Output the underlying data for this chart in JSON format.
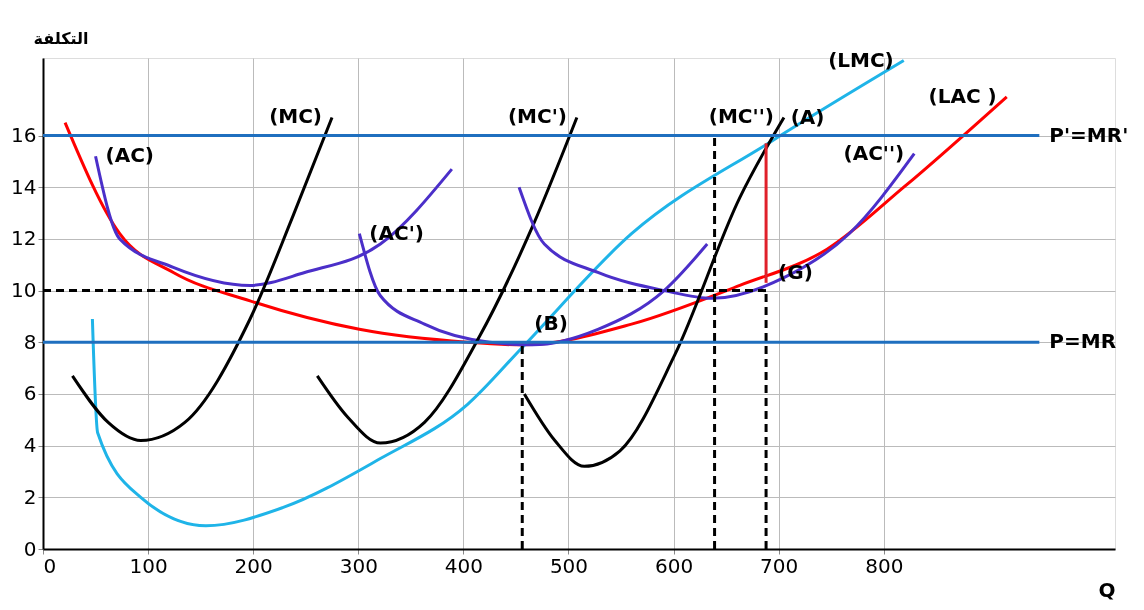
{
  "chart_data": {
    "type": "line",
    "xlabel": "Q",
    "ylabel": "التكلفة",
    "xlim": [
      0,
      1020
    ],
    "ylim": [
      0,
      19
    ],
    "xticks": [
      0,
      100,
      200,
      300,
      400,
      500,
      600,
      700,
      800
    ],
    "yticks": [
      0,
      2,
      4,
      6,
      8,
      10,
      12,
      14,
      16
    ],
    "grid": true,
    "marker": "none",
    "line_style": "solid",
    "series": [
      {
        "name": "(LAC )",
        "color": "#ff0000",
        "x": [
          21,
          73,
          124,
          197,
          301,
          404,
          456,
          560,
          663,
          746,
          819,
          917
        ],
        "values": [
          16.5,
          12.2,
          10.7,
          9.6,
          8.5,
          8.0,
          7.9,
          8.7,
          10.2,
          11.6,
          14.0,
          17.5
        ]
      },
      {
        "name": "(LMC)",
        "color": "#1fb4e8",
        "x": [
          47,
          52,
          93,
          155,
          228,
          321,
          404,
          456,
          560,
          694,
          819
        ],
        "values": [
          8.9,
          4.5,
          2.0,
          0.9,
          1.6,
          3.5,
          5.6,
          7.8,
          12.2,
          15.8,
          18.9
        ]
      },
      {
        "name": "(AC)",
        "color": "#4b2fc9",
        "x": [
          50,
          73,
          124,
          197,
          249,
          321,
          389
        ],
        "values": [
          15.2,
          12.0,
          10.9,
          10.2,
          10.7,
          11.8,
          14.7
        ]
      },
      {
        "name": "(MC)",
        "color": "#000000",
        "x": [
          28,
          62,
          93,
          135,
          197,
          238,
          275
        ],
        "values": [
          6.7,
          4.9,
          4.2,
          4.9,
          8.9,
          12.9,
          16.7
        ]
      },
      {
        "name": "(AC')",
        "color": "#4b2fc9",
        "x": [
          301,
          321,
          363,
          425,
          466,
          528,
          591,
          632
        ],
        "values": [
          12.2,
          9.8,
          8.7,
          8.0,
          7.9,
          8.5,
          10.0,
          11.8
        ]
      },
      {
        "name": "(MC')",
        "color": "#000000",
        "x": [
          261,
          290,
          321,
          363,
          415,
          466,
          508
        ],
        "values": [
          6.7,
          5.1,
          4.1,
          4.9,
          8.2,
          12.5,
          16.7
        ]
      },
      {
        "name": "(AC'')",
        "color": "#4b2fc9",
        "x": [
          453,
          477,
          528,
          591,
          637,
          705,
          767,
          829
        ],
        "values": [
          14.0,
          11.8,
          10.7,
          10.0,
          9.7,
          10.5,
          12.2,
          15.3
        ]
      },
      {
        "name": "(MC'')",
        "color": "#000000",
        "x": [
          458,
          487,
          515,
          549,
          601,
          663,
          705
        ],
        "values": [
          6.0,
          4.2,
          3.2,
          3.8,
          7.5,
          13.6,
          16.7
        ]
      },
      {
        "color": "#000000",
        "line_style": "dashed",
        "x": [
          0,
          688
        ],
        "values": [
          10,
          10
        ]
      },
      {
        "color": "#000000",
        "line_style": "dashed",
        "x": [
          639,
          639
        ],
        "values": [
          0,
          16
        ]
      },
      {
        "color": "#000000",
        "line_style": "dashed",
        "x": [
          688,
          688
        ],
        "values": [
          0,
          10
        ]
      },
      {
        "color": "#000000",
        "line_style": "dashed",
        "x": [
          456,
          456
        ],
        "values": [
          0,
          8
        ]
      },
      {
        "color": "#e0202a",
        "x": [
          688,
          688
        ],
        "values": [
          10.3,
          15.7
        ]
      },
      {
        "name": "P'=MR'",
        "color": "#1f6fbf",
        "x": [
          0,
          948
        ],
        "values": [
          16,
          16
        ]
      },
      {
        "name": "P=MR",
        "color": "#1f6fbf",
        "x": [
          0,
          948
        ],
        "values": [
          8,
          8
        ]
      }
    ],
    "annotations": [
      {
        "text": "(A)",
        "x": 700,
        "y": 16
      },
      {
        "text": "(B)",
        "x": 456,
        "y": 8
      },
      {
        "text": "(G)",
        "x": 688,
        "y": 10
      }
    ]
  }
}
